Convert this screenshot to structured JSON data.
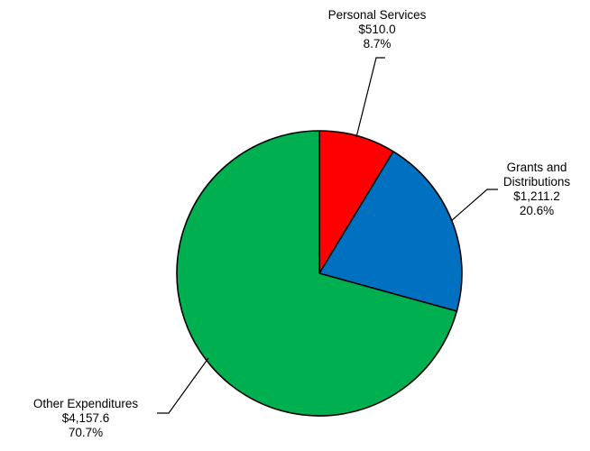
{
  "chart_data": {
    "type": "pie",
    "slices": [
      {
        "name": "Personal Services",
        "amount_label": "$510.0",
        "percent_label": "8.7%",
        "value": 510.0,
        "percent": 8.7,
        "color": "#ff0000"
      },
      {
        "name_lines": [
          "Grants and",
          "Distributions"
        ],
        "amount_label": "$1,211.2",
        "percent_label": "20.6%",
        "value": 1211.2,
        "percent": 20.6,
        "color": "#0070c0"
      },
      {
        "name": "Other Expenditures",
        "amount_label": "$4,157.6",
        "percent_label": "70.7%",
        "value": 4157.6,
        "percent": 70.7,
        "color": "#00b050"
      }
    ],
    "start_angle": "12 o'clock",
    "direction": "clockwise",
    "legend": "none",
    "slice_border_color": "#000000"
  }
}
